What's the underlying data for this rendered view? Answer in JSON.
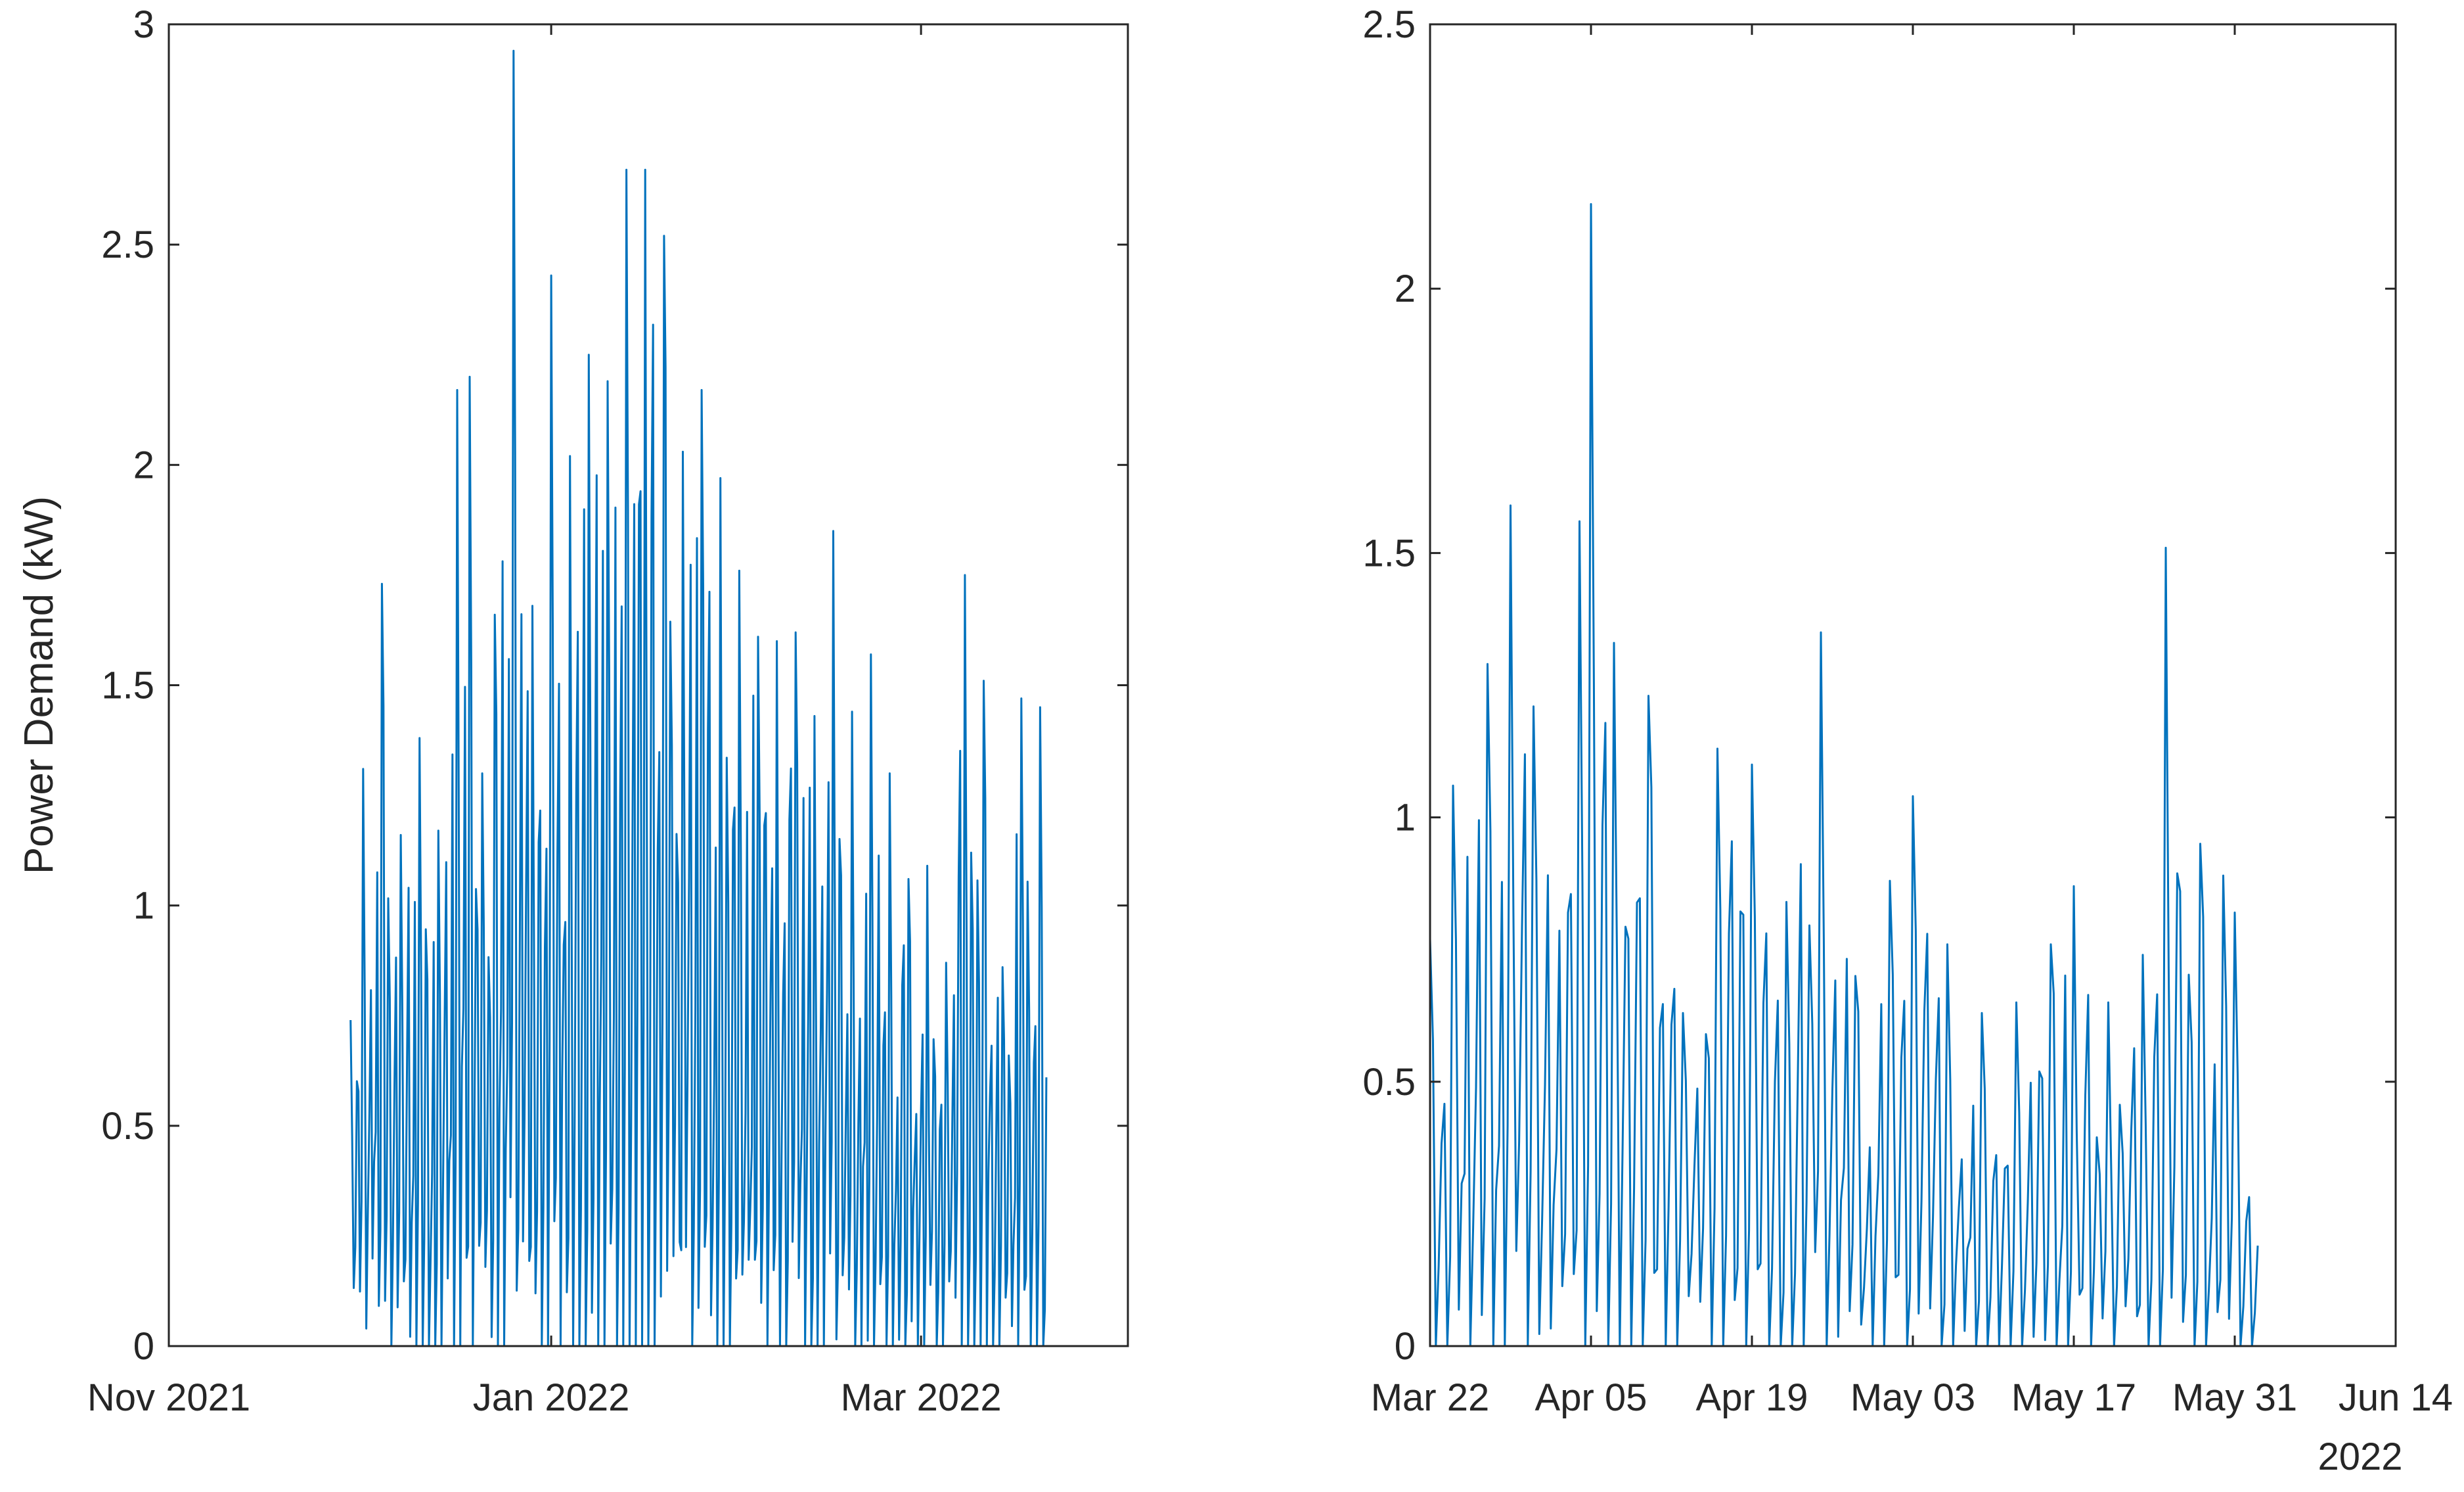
{
  "chart_data": [
    {
      "type": "line",
      "title": "",
      "xlabel": "",
      "ylabel": "Power Demand (kW)",
      "ylim": [
        0,
        3
      ],
      "xlim": [
        "2021-11-01",
        "2022-04-03"
      ],
      "y_ticks": [
        "0",
        "0.5",
        "1",
        "1.5",
        "2",
        "2.5",
        "3"
      ],
      "x_ticks": [
        {
          "date": "2021-11-01",
          "label": "Nov 2021"
        },
        {
          "date": "2022-01-01",
          "label": "Jan 2022"
        },
        {
          "date": "2022-03-01",
          "label": "Mar 2022"
        }
      ],
      "grid": false,
      "series": [
        {
          "color": "#0072bd",
          "x": [
            "2021-11-30",
            "2021-12-02",
            "2021-12-05",
            "2021-12-08",
            "2021-12-11",
            "2021-12-14",
            "2021-12-17",
            "2021-12-19",
            "2021-12-21",
            "2021-12-23",
            "2021-12-26",
            "2021-12-29",
            "2022-01-01",
            "2022-01-04",
            "2022-01-07",
            "2022-01-10",
            "2022-01-13",
            "2022-01-16",
            "2022-01-19",
            "2022-01-22",
            "2022-01-25",
            "2022-01-28",
            "2022-01-31",
            "2022-02-03",
            "2022-02-06",
            "2022-02-09",
            "2022-02-12",
            "2022-02-15",
            "2022-02-18",
            "2022-02-21",
            "2022-02-24",
            "2022-02-27",
            "2022-03-02",
            "2022-03-05",
            "2022-03-08",
            "2022-03-11",
            "2022-03-14",
            "2022-03-17",
            "2022-03-20",
            "2022-03-21"
          ],
          "y": [
            0.74,
            1.31,
            1.73,
            1.16,
            1.38,
            1.17,
            2.17,
            2.2,
            1.3,
            1.66,
            2.94,
            1.68,
            2.43,
            2.02,
            2.25,
            2.19,
            2.67,
            2.67,
            2.52,
            2.03,
            2.17,
            1.97,
            1.76,
            1.61,
            1.6,
            1.62,
            1.43,
            1.85,
            1.44,
            1.57,
            1.3,
            1.06,
            1.09,
            0.87,
            1.75,
            1.51,
            0.86,
            1.47,
            1.45,
            0.61
          ]
        }
      ]
    },
    {
      "type": "line",
      "title": "",
      "xlabel": "",
      "ylabel": "",
      "ylim": [
        0,
        2.5
      ],
      "xlim": [
        "2022-03-22",
        "2022-06-14"
      ],
      "y_ticks": [
        "0",
        "0.5",
        "1",
        "1.5",
        "2",
        "2.5"
      ],
      "x_ticks": [
        {
          "date": "2022-03-22",
          "label": "Mar 22"
        },
        {
          "date": "2022-04-05",
          "label": "Apr 05"
        },
        {
          "date": "2022-04-19",
          "label": "Apr 19"
        },
        {
          "date": "2022-05-03",
          "label": "May 03"
        },
        {
          "date": "2022-05-17",
          "label": "May 17"
        },
        {
          "date": "2022-05-31",
          "label": "May 31"
        },
        {
          "date": "2022-06-14",
          "label": "Jun 14"
        }
      ],
      "x_secondary_label": "2022",
      "grid": false,
      "series": [
        {
          "color": "#0072bd",
          "x": [
            "2022-03-22",
            "2022-03-24",
            "2022-03-27",
            "2022-03-29",
            "2022-03-31",
            "2022-04-03",
            "2022-04-04",
            "2022-04-05",
            "2022-04-07",
            "2022-04-10",
            "2022-04-13",
            "2022-04-16",
            "2022-04-19",
            "2022-04-22",
            "2022-04-25",
            "2022-04-28",
            "2022-05-01",
            "2022-05-03",
            "2022-05-06",
            "2022-05-09",
            "2022-05-12",
            "2022-05-15",
            "2022-05-17",
            "2022-05-20",
            "2022-05-23",
            "2022-05-25",
            "2022-05-28",
            "2022-05-30",
            "2022-05-31",
            "2022-06-02"
          ],
          "y": [
            0.77,
            1.06,
            1.29,
            1.59,
            1.21,
            0.82,
            1.56,
            2.16,
            1.33,
            1.23,
            0.63,
            1.13,
            1.1,
            0.84,
            1.35,
            0.7,
            0.88,
            1.04,
            0.76,
            0.63,
            0.65,
            0.76,
            0.87,
            0.65,
            0.74,
            1.51,
            0.95,
            0.89,
            0.82,
            0.19
          ]
        }
      ]
    }
  ]
}
